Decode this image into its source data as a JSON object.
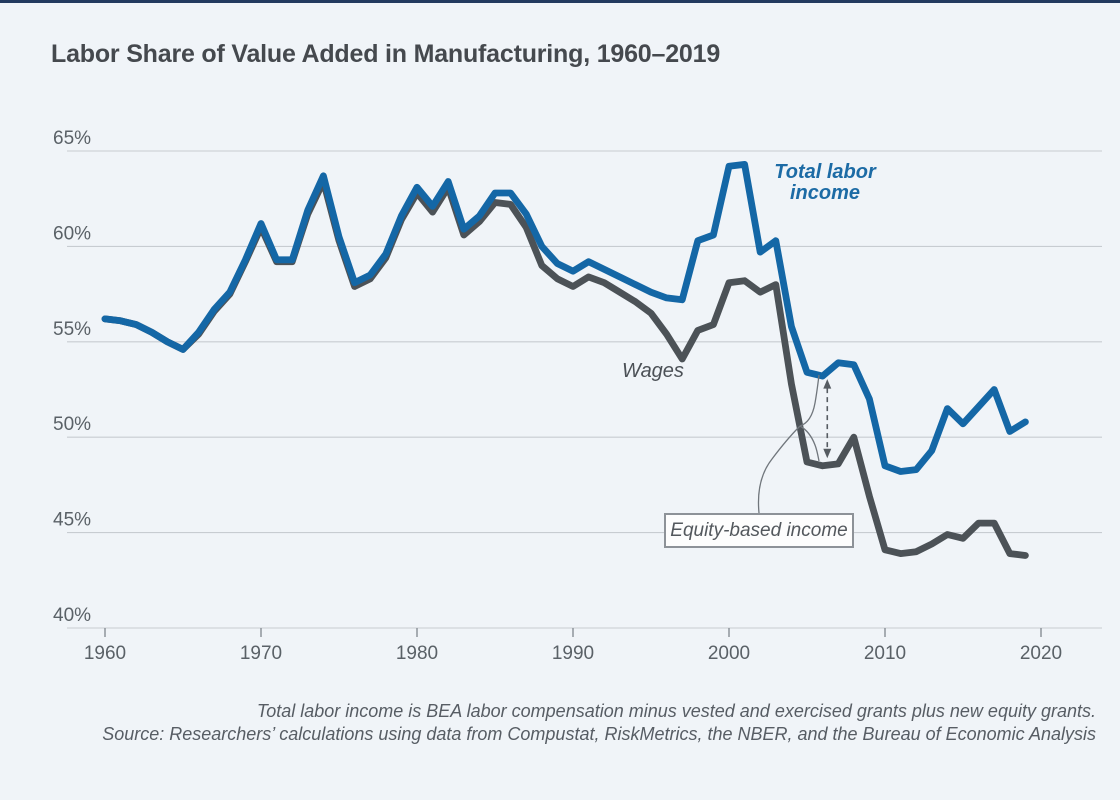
{
  "page": {
    "title": "Labor Share of Value Added in Manufacturing, 1960–2019"
  },
  "colors": {
    "background": "#f0f4f8",
    "accent_bar": "#223a5f",
    "title_text": "#45494e",
    "gridline": "#c7ccd1",
    "axis_text": "#5a6167",
    "tick_mark": "#878d93",
    "total_line": "#1467a6",
    "total_label_text": "#1c6ba5",
    "wages_line": "#4c5257",
    "annotation_text": "#4b5056",
    "callout_line": "#70767c",
    "box_border": "#8d9298",
    "box_background": "#fdfdfd",
    "footnote_text": "#575d64"
  },
  "chart_data": {
    "type": "line",
    "title": "Labor Share of Value Added in Manufacturing, 1960–2019",
    "xlabel": "",
    "ylabel": "",
    "ylim": [
      40,
      65
    ],
    "ytick_step": 5,
    "ytick_suffix": "%",
    "xticks": [
      1960,
      1970,
      1980,
      1990,
      2000,
      2010,
      2020
    ],
    "grid": "horizontal",
    "legend": "direct-labels",
    "x": [
      1960,
      1961,
      1962,
      1963,
      1964,
      1965,
      1966,
      1967,
      1968,
      1969,
      1970,
      1971,
      1972,
      1973,
      1974,
      1975,
      1976,
      1977,
      1978,
      1979,
      1980,
      1981,
      1982,
      1983,
      1984,
      1985,
      1986,
      1987,
      1988,
      1989,
      1990,
      1991,
      1992,
      1993,
      1994,
      1995,
      1996,
      1997,
      1998,
      1999,
      2000,
      2001,
      2002,
      2003,
      2004,
      2005,
      2006,
      2007,
      2008,
      2009,
      2010,
      2011,
      2012,
      2013,
      2014,
      2015,
      2016,
      2017,
      2018,
      2019
    ],
    "series": [
      {
        "name": "Total labor income",
        "color": "#1467a6",
        "values": [
          56.2,
          56.1,
          55.9,
          55.5,
          55.0,
          54.6,
          55.5,
          56.7,
          57.6,
          59.3,
          61.2,
          59.3,
          59.3,
          61.9,
          63.7,
          60.5,
          58.1,
          58.5,
          59.6,
          61.6,
          63.1,
          62.1,
          63.4,
          60.9,
          61.6,
          62.8,
          62.8,
          61.7,
          60.0,
          59.1,
          58.7,
          59.2,
          58.8,
          58.4,
          58.0,
          57.6,
          57.3,
          57.2,
          60.3,
          60.6,
          64.2,
          64.3,
          59.7,
          60.3,
          55.8,
          53.4,
          53.2,
          53.9,
          53.8,
          52.0,
          48.5,
          48.2,
          48.3,
          49.3,
          51.5,
          50.7,
          51.6,
          52.5,
          50.3,
          50.8
        ]
      },
      {
        "name": "Wages",
        "color": "#4c5257",
        "values": [
          56.2,
          56.1,
          55.9,
          55.5,
          55.0,
          54.6,
          55.4,
          56.6,
          57.5,
          59.2,
          61.0,
          59.2,
          59.2,
          61.7,
          63.4,
          60.3,
          57.9,
          58.3,
          59.4,
          61.4,
          62.8,
          61.8,
          63.1,
          60.6,
          61.3,
          62.3,
          62.2,
          61.0,
          59.0,
          58.3,
          57.9,
          58.4,
          58.1,
          57.6,
          57.1,
          56.5,
          55.4,
          54.1,
          55.6,
          55.9,
          58.1,
          58.2,
          57.6,
          58.0,
          52.8,
          48.7,
          48.5,
          48.6,
          50.0,
          46.9,
          44.1,
          43.9,
          44.0,
          44.4,
          44.9,
          44.7,
          45.5,
          45.5,
          43.9,
          43.8
        ]
      }
    ],
    "annotations": {
      "total_label": {
        "line1": "Total labor",
        "line2": "income"
      },
      "wages_label": {
        "text": "Wages"
      },
      "equity_box": {
        "text": "Equity-based income"
      },
      "gap_arrow": {
        "year": 2006.3,
        "style": "dashed-double-headed",
        "meaning": "gap between total labor income and wages = equity-based income"
      }
    },
    "footnotes": [
      "Total labor income is BEA labor compensation minus vested and exercised grants plus new equity grants.",
      "Source: Researchers’ calculations using data from Compustat, RiskMetrics, the NBER, and the Bureau of Economic Analysis"
    ]
  }
}
